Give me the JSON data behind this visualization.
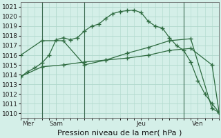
{
  "background_color": "#d4efe8",
  "grid_color": "#b0d8cc",
  "line_color": "#2d6a3f",
  "title": "Pression niveau de la mer( hPa )",
  "ylim": [
    1009.5,
    1021.5
  ],
  "ytick_min": 1010,
  "ytick_max": 1021,
  "xlim": [
    0,
    14
  ],
  "x_ticks_labels": [
    "Mer",
    "Sam",
    "Jeu",
    "Ven"
  ],
  "x_ticks_pos": [
    0.5,
    2.5,
    8.5,
    12.5
  ],
  "vline_positions": [
    1.5,
    4.5,
    11.5
  ],
  "series1_x": [
    0,
    0.5,
    1,
    1.5,
    2,
    2.5,
    3,
    3.5,
    4,
    4.5,
    5,
    5.5,
    6,
    6.5,
    7,
    7.5,
    8,
    8.5,
    9,
    9.5,
    10,
    10.5,
    11,
    11.5,
    12,
    12.5,
    13,
    13.5,
    14
  ],
  "series1_y": [
    1013.8,
    1014.3,
    1014.7,
    1015.2,
    1016.0,
    1017.6,
    1017.8,
    1017.6,
    1017.8,
    1018.5,
    1019.0,
    1019.2,
    1019.8,
    1020.3,
    1020.5,
    1020.6,
    1020.65,
    1020.4,
    1019.5,
    1019.0,
    1018.8,
    1017.8,
    1017.0,
    1016.5,
    1015.3,
    1013.4,
    1012.0,
    1011.0,
    1010.1
  ],
  "series2_x": [
    0,
    1.5,
    3,
    4.5,
    6,
    7.5,
    9,
    10.5,
    12,
    13.5,
    14
  ],
  "series2_y": [
    1016.0,
    1017.5,
    1017.5,
    1015.0,
    1015.5,
    1016.2,
    1016.8,
    1017.5,
    1017.7,
    1010.5,
    1010.1
  ],
  "series3_x": [
    0,
    1.5,
    3,
    4.5,
    6,
    7.5,
    9,
    10.5,
    12,
    13.5,
    14
  ],
  "series3_y": [
    1013.8,
    1014.8,
    1015.0,
    1015.3,
    1015.5,
    1015.7,
    1016.0,
    1016.5,
    1016.7,
    1015.0,
    1010.1
  ],
  "title_fontsize": 8,
  "tick_fontsize": 6.5
}
